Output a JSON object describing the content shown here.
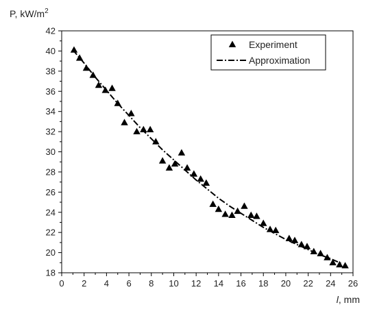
{
  "chart_data": {
    "type": "scatter",
    "title": "",
    "ylabel_prefix": "P, kW/m",
    "ylabel_sup": "2",
    "xlabel_var": "l",
    "xlabel_unit": ", mm",
    "xlim": [
      0,
      26
    ],
    "ylim": [
      18,
      42
    ],
    "xticks": [
      0,
      2,
      4,
      6,
      8,
      10,
      12,
      14,
      16,
      18,
      20,
      22,
      24,
      26
    ],
    "yticks": [
      18,
      20,
      22,
      24,
      26,
      28,
      30,
      32,
      34,
      36,
      38,
      40,
      42
    ],
    "grid": false,
    "legend_position": "top-right",
    "series": [
      {
        "name": "Experiment",
        "kind": "scatter",
        "marker": "triangle",
        "color": "#000000",
        "x": [
          1.1,
          1.6,
          2.2,
          2.8,
          3.3,
          3.9,
          4.5,
          5.0,
          5.6,
          6.2,
          6.7,
          7.3,
          7.9,
          8.4,
          9.0,
          9.6,
          10.1,
          10.7,
          11.2,
          11.8,
          12.4,
          12.9,
          13.5,
          14.0,
          14.6,
          15.2,
          15.7,
          16.3,
          16.9,
          17.4,
          18.0,
          18.6,
          19.1,
          20.3,
          20.8,
          21.4,
          21.9,
          22.5,
          23.1,
          23.7,
          24.2,
          24.8,
          25.3
        ],
        "y": [
          40.1,
          39.3,
          38.3,
          37.6,
          36.6,
          36.1,
          36.3,
          34.8,
          32.9,
          33.8,
          32.0,
          32.2,
          32.2,
          31.0,
          29.1,
          28.4,
          28.8,
          29.9,
          28.4,
          27.8,
          27.3,
          26.9,
          24.8,
          24.3,
          23.8,
          23.7,
          24.1,
          24.6,
          23.7,
          23.6,
          22.9,
          22.3,
          22.2,
          21.4,
          21.2,
          20.8,
          20.6,
          20.1,
          19.9,
          19.5,
          19.0,
          18.8,
          18.7
        ]
      },
      {
        "name": "Approximation",
        "kind": "line",
        "dash": "dash-dot",
        "color": "#000000",
        "x": [
          1,
          2,
          3,
          4,
          5,
          6,
          7,
          8,
          9,
          10,
          11,
          12,
          13,
          14,
          15,
          16,
          17,
          18,
          19,
          20,
          21,
          22,
          23,
          24,
          25
        ],
        "y": [
          40.1,
          38.8,
          37.4,
          36.1,
          34.8,
          33.6,
          32.4,
          31.3,
          30.2,
          29.2,
          28.2,
          27.2,
          26.3,
          25.4,
          24.6,
          23.9,
          23.2,
          22.5,
          21.9,
          21.3,
          20.8,
          20.3,
          19.8,
          19.4,
          18.9
        ]
      }
    ]
  }
}
